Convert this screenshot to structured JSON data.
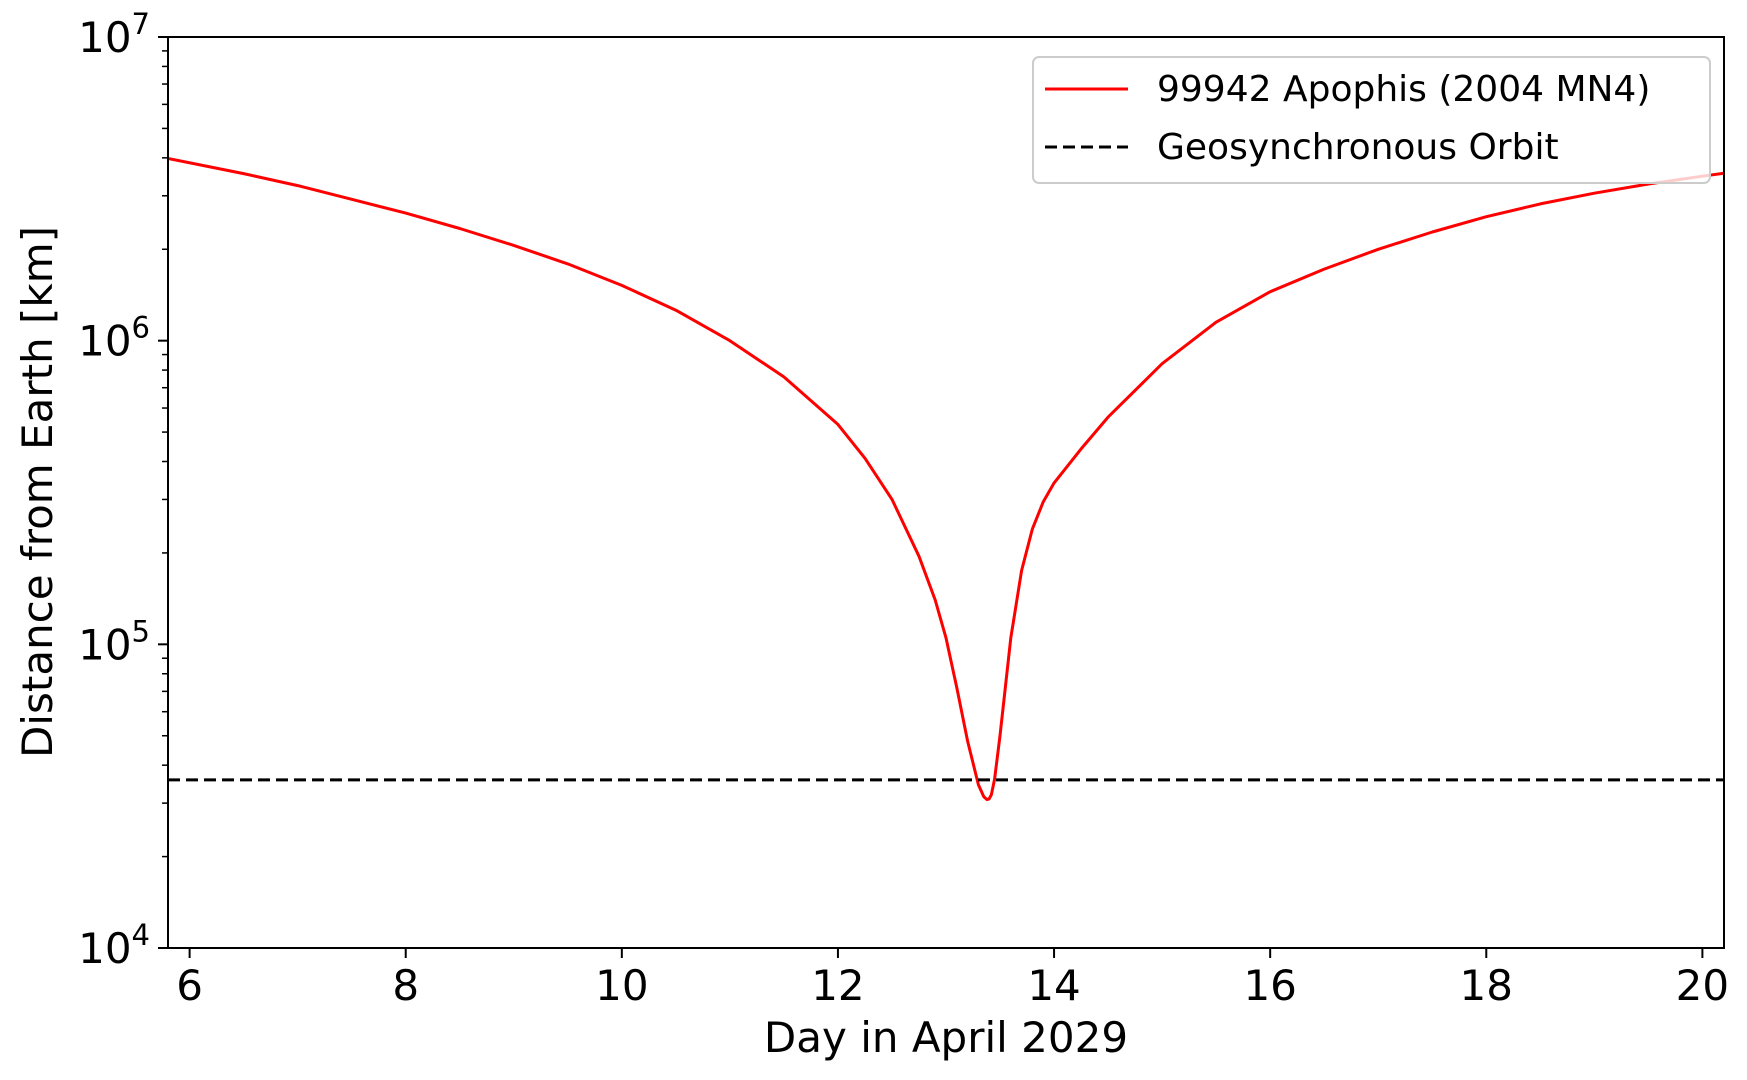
{
  "chart_data": {
    "type": "line",
    "title": "",
    "xlabel": "Day in April 2029",
    "ylabel": "Distance from Earth [km]",
    "xlim": [
      5.8,
      20.2
    ],
    "ylim": [
      10000,
      10000000
    ],
    "yscale": "log",
    "grid": false,
    "legend_position": "top-right",
    "x_ticks": [
      6,
      8,
      10,
      12,
      14,
      16,
      18,
      20
    ],
    "y_ticks": [
      {
        "value": 10000,
        "base": "10",
        "exp": "4"
      },
      {
        "value": 100000,
        "base": "10",
        "exp": "5"
      },
      {
        "value": 1000000,
        "base": "10",
        "exp": "6"
      },
      {
        "value": 10000000,
        "base": "10",
        "exp": "7"
      }
    ],
    "series": [
      {
        "name": "99942 Apophis (2004 MN4)",
        "color": "#ff0000",
        "style": "solid",
        "x": [
          5.8,
          6.5,
          7.0,
          7.5,
          8.0,
          8.5,
          9.0,
          9.5,
          10.0,
          10.5,
          11.0,
          11.5,
          12.0,
          12.25,
          12.5,
          12.75,
          12.9,
          13.0,
          13.1,
          13.2,
          13.3,
          13.35,
          13.38,
          13.4,
          13.42,
          13.45,
          13.5,
          13.6,
          13.7,
          13.8,
          13.9,
          14.0,
          14.25,
          14.5,
          15.0,
          15.5,
          16.0,
          16.5,
          17.0,
          17.5,
          18.0,
          18.5,
          19.0,
          19.5,
          20.0,
          20.2
        ],
        "y": [
          3980000,
          3550000,
          3240000,
          2920000,
          2630000,
          2340000,
          2060000,
          1790000,
          1520000,
          1260000,
          1000000,
          760000,
          530000,
          410000,
          300000,
          195000,
          140000,
          105000,
          72000,
          48000,
          34500,
          31500,
          30800,
          31000,
          32000,
          36000,
          50000,
          105000,
          175000,
          240000,
          295000,
          340000,
          440000,
          560000,
          840000,
          1150000,
          1450000,
          1720000,
          2000000,
          2280000,
          2560000,
          2820000,
          3060000,
          3280000,
          3480000,
          3560000
        ]
      },
      {
        "name": "Geosynchronous Orbit",
        "color": "#000000",
        "style": "dashed",
        "x": [
          5.8,
          20.2
        ],
        "y": [
          35786,
          35786
        ]
      }
    ]
  }
}
